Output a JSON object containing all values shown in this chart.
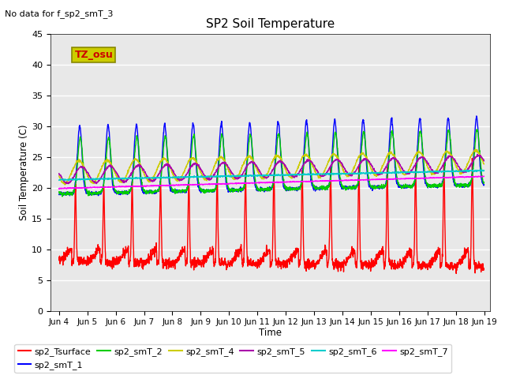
{
  "title": "SP2 Soil Temperature",
  "no_data_text": "No data for f_sp2_smT_3",
  "tz_label": "TZ_osu",
  "xlabel": "Time",
  "ylabel": "Soil Temperature (C)",
  "xlim_days": [
    3.7,
    19.2
  ],
  "ylim": [
    0,
    45
  ],
  "yticks": [
    0,
    5,
    10,
    15,
    20,
    25,
    30,
    35,
    40,
    45
  ],
  "xtick_labels": [
    "Jun 4",
    "Jun 5",
    "Jun 6",
    "Jun 7",
    "Jun 8",
    "Jun 9",
    "Jun 10",
    "Jun 11",
    "Jun 12",
    "Jun 13",
    "Jun 14",
    "Jun 15",
    "Jun 16",
    "Jun 17",
    "Jun 18",
    "Jun 19"
  ],
  "xtick_positions": [
    4,
    5,
    6,
    7,
    8,
    9,
    10,
    11,
    12,
    13,
    14,
    15,
    16,
    17,
    18,
    19
  ],
  "series_colors": {
    "sp2_Tsurface": "#ff0000",
    "sp2_smT_1": "#0000ff",
    "sp2_smT_2": "#00cc00",
    "sp2_smT_4": "#cccc00",
    "sp2_smT_5": "#aa00aa",
    "sp2_smT_6": "#00cccc",
    "sp2_smT_7": "#ff00ff"
  },
  "plot_bg_color": "#e8e8e8",
  "grid_color": "#ffffff",
  "tz_box_facecolor": "#cccc00",
  "tz_box_edgecolor": "#888800",
  "tz_text_color": "#cc0000"
}
